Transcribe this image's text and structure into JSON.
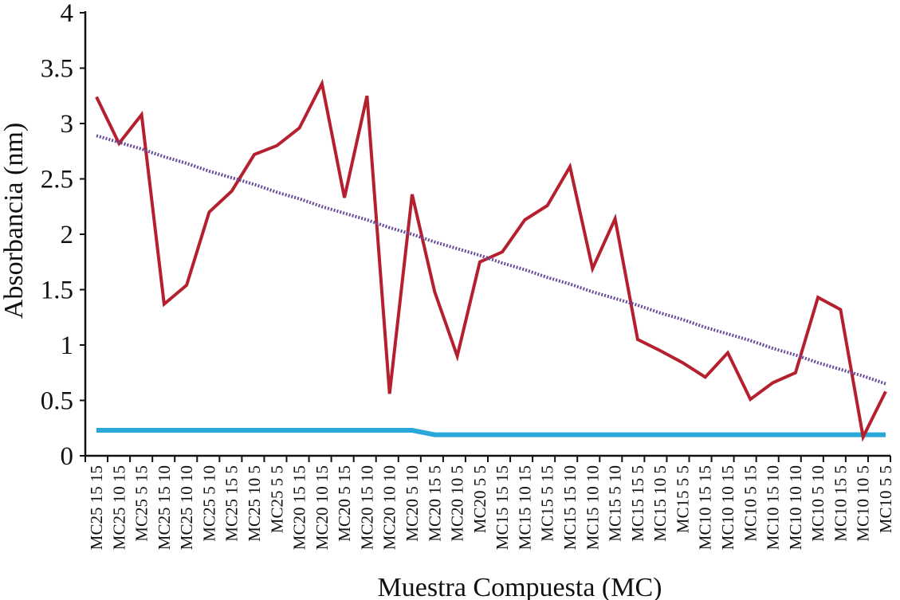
{
  "chart_data": {
    "type": "line",
    "title": "",
    "xlabel": "Muestra Compuesta (MC)",
    "ylabel": "Absorbancia (nm)",
    "ylim": [
      0,
      4
    ],
    "yticks": [
      "0",
      "0.5",
      "1",
      "1.5",
      "2",
      "2.5",
      "3",
      "3.5",
      "4"
    ],
    "grid": false,
    "legend": "none",
    "categories": [
      "MC25 15 15",
      "MC25 10 15",
      "MC25 5 15",
      "MC25 15 10",
      "MC25 10 10",
      "MC25 5 10",
      "MC25 15 5",
      "MC25 10 5",
      "MC25 5 5",
      "MC20 15 15",
      "MC20 10 15",
      "MC20 5 15",
      "MC20 15 10",
      "MC20 10 10",
      "MC20 5 10",
      "MC20 15 5",
      "MC20 10 5",
      "MC20 5 5",
      "MC15 15 15",
      "MC15 10 15",
      "MC15 5 15",
      "MC15 15 10",
      "MC15 10 10",
      "MC15 5 10",
      "MC15 15 5",
      "MC15 10 5",
      "MC15 5 5",
      "MC10 15 15",
      "MC10 10 15",
      "MC10 5 15",
      "MC10 15 10",
      "MC10 10 10",
      "MC10 5 10",
      "MC10 15 5",
      "MC10 10 5",
      "MC10 5 5"
    ],
    "series": [
      {
        "role": "absorbance",
        "color": "#b5202e",
        "style": "solid",
        "values": [
          3.24,
          2.82,
          3.08,
          1.37,
          1.54,
          2.2,
          2.39,
          2.72,
          2.8,
          2.96,
          3.36,
          2.33,
          3.25,
          0.56,
          2.36,
          1.48,
          0.9,
          1.75,
          1.84,
          2.13,
          2.26,
          2.61,
          1.69,
          2.14,
          1.05,
          0.95,
          0.84,
          0.71,
          0.93,
          0.51,
          0.66,
          0.75,
          1.43,
          1.32,
          0.17,
          0.58
        ]
      },
      {
        "role": "trend",
        "color": "#6a4c9c",
        "style": "dotted",
        "values": [
          2.89,
          2.83,
          2.77,
          2.7,
          2.64,
          2.57,
          2.51,
          2.45,
          2.38,
          2.32,
          2.25,
          2.19,
          2.13,
          2.06,
          2.0,
          1.93,
          1.87,
          1.81,
          1.74,
          1.68,
          1.61,
          1.55,
          1.48,
          1.42,
          1.36,
          1.29,
          1.23,
          1.16,
          1.1,
          1.04,
          0.97,
          0.91,
          0.84,
          0.78,
          0.72,
          0.65
        ]
      },
      {
        "role": "baseline",
        "color": "#2aa8d8",
        "style": "solid",
        "values": [
          0.23,
          0.23,
          0.23,
          0.23,
          0.23,
          0.23,
          0.23,
          0.23,
          0.23,
          0.23,
          0.23,
          0.23,
          0.23,
          0.23,
          0.23,
          0.19,
          0.19,
          0.19,
          0.19,
          0.19,
          0.19,
          0.19,
          0.19,
          0.19,
          0.19,
          0.19,
          0.19,
          0.19,
          0.19,
          0.19,
          0.19,
          0.19,
          0.19,
          0.19,
          0.19,
          0.19
        ]
      }
    ]
  }
}
